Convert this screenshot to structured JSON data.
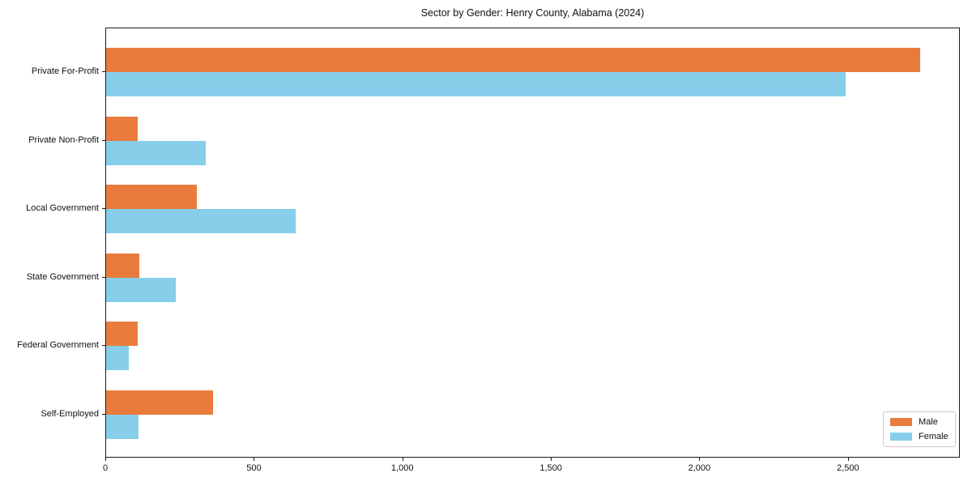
{
  "chart_data": {
    "type": "bar",
    "orientation": "horizontal",
    "title": "Sector by Gender: Henry County, Alabama (2024)",
    "categories": [
      "Private For-Profit",
      "Private Non-Profit",
      "Local Government",
      "State Government",
      "Federal Government",
      "Self-Employed"
    ],
    "series": [
      {
        "name": "Male",
        "color": "#E97C3C",
        "values": [
          2740,
          105,
          306,
          112,
          107,
          359
        ]
      },
      {
        "name": "Female",
        "color": "#87CEEB",
        "values": [
          2490,
          334,
          639,
          234,
          75,
          108
        ]
      }
    ],
    "xlim": [
      0,
      2877
    ],
    "xticks": [
      0,
      500,
      1000,
      1500,
      2000,
      2500
    ],
    "xtick_labels": [
      "0",
      "500",
      "1,000",
      "1,500",
      "2,000",
      "2,500"
    ],
    "ylabel": "",
    "xlabel": "",
    "grid": false,
    "legend": {
      "position": "lower right",
      "entries": [
        "Male",
        "Female"
      ]
    },
    "colors": {
      "background": "#ffffff",
      "spine": "#1a1a1a",
      "legend_border": "#cccccc"
    }
  }
}
